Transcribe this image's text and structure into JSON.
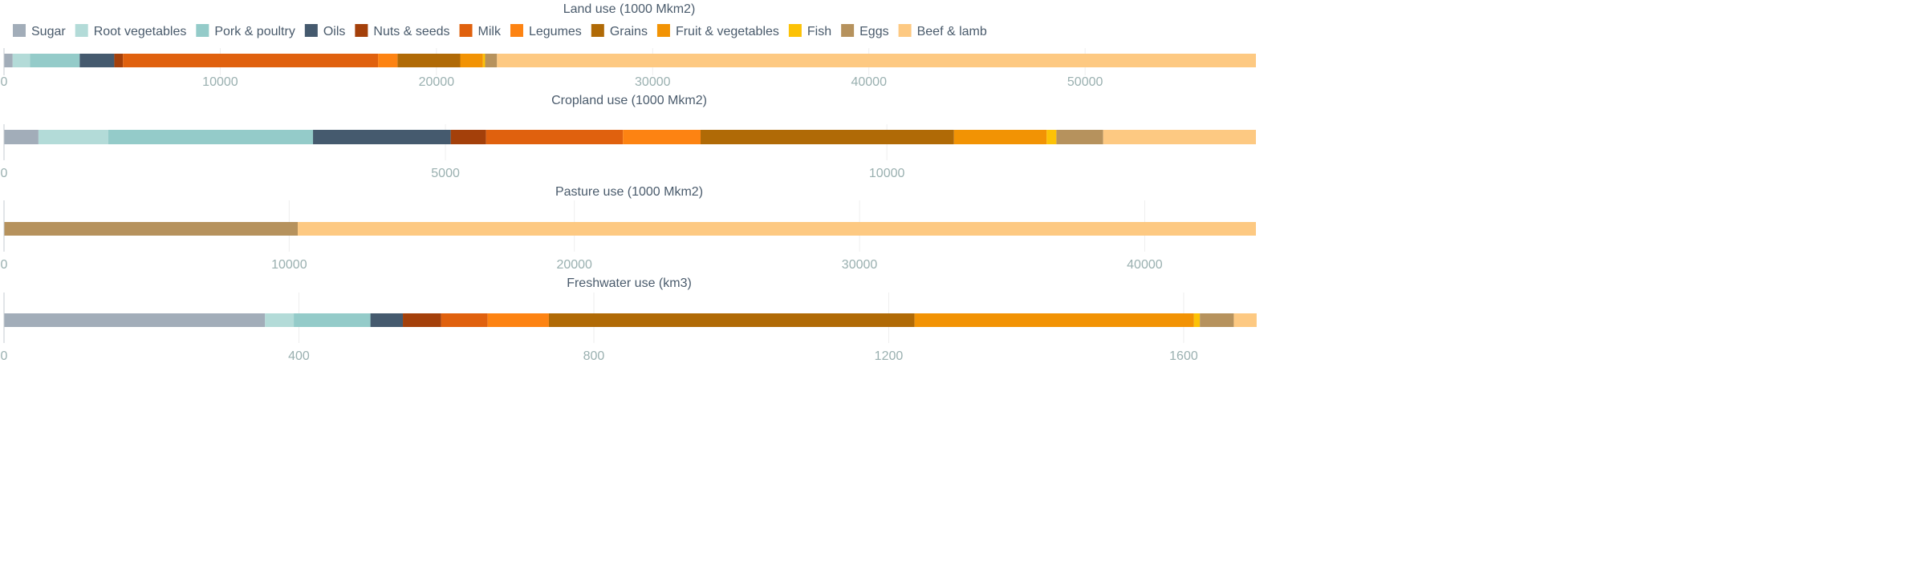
{
  "legend": {
    "items": [
      {
        "label": "Sugar",
        "color": "#a2adb9"
      },
      {
        "label": "Root vegetables",
        "color": "#b3dbd8"
      },
      {
        "label": "Pork & poultry",
        "color": "#94cbc9"
      },
      {
        "label": "Oils",
        "color": "#455a6e"
      },
      {
        "label": "Nuts & seeds",
        "color": "#a4400a"
      },
      {
        "label": "Milk",
        "color": "#e0610e"
      },
      {
        "label": "Legumes",
        "color": "#fd8312"
      },
      {
        "label": "Grains",
        "color": "#b06a06"
      },
      {
        "label": "Fruit & vegetables",
        "color": "#f29304"
      },
      {
        "label": "Fish",
        "color": "#fcc206"
      },
      {
        "label": "Eggs",
        "color": "#b6925d"
      },
      {
        "label": "Beef & lamb",
        "color": "#fdc982"
      }
    ]
  },
  "chart_data": [
    {
      "type": "bar",
      "orientation": "horizontal",
      "stacked": true,
      "title": "Land use (1000 Mkm2)",
      "xlim": [
        0,
        57900
      ],
      "xticks": [
        0,
        10000,
        20000,
        30000,
        40000,
        50000
      ],
      "series": [
        {
          "name": "Sugar",
          "value": 400
        },
        {
          "name": "Root vegetables",
          "value": 800
        },
        {
          "name": "Pork & poultry",
          "value": 2300
        },
        {
          "name": "Oils",
          "value": 1600
        },
        {
          "name": "Nuts & seeds",
          "value": 400
        },
        {
          "name": "Milk",
          "value": 11800
        },
        {
          "name": "Legumes",
          "value": 900
        },
        {
          "name": "Grains",
          "value": 2900
        },
        {
          "name": "Fruit & vegetables",
          "value": 1050
        },
        {
          "name": "Fish",
          "value": 100
        },
        {
          "name": "Eggs",
          "value": 550
        },
        {
          "name": "Beef & lamb",
          "value": 35100
        }
      ]
    },
    {
      "type": "bar",
      "orientation": "horizontal",
      "stacked": true,
      "title": "Cropland use (1000 Mkm2)",
      "xlim": [
        0,
        14180
      ],
      "xticks": [
        0,
        5000,
        10000
      ],
      "series": [
        {
          "name": "Sugar",
          "value": 390
        },
        {
          "name": "Root vegetables",
          "value": 790
        },
        {
          "name": "Pork & poultry",
          "value": 2320
        },
        {
          "name": "Oils",
          "value": 1560
        },
        {
          "name": "Nuts & seeds",
          "value": 400
        },
        {
          "name": "Milk",
          "value": 1550
        },
        {
          "name": "Legumes",
          "value": 880
        },
        {
          "name": "Grains",
          "value": 2870
        },
        {
          "name": "Fruit & vegetables",
          "value": 1050
        },
        {
          "name": "Fish",
          "value": 110
        },
        {
          "name": "Eggs",
          "value": 530
        },
        {
          "name": "Beef & lamb",
          "value": 1730
        }
      ]
    },
    {
      "type": "bar",
      "orientation": "horizontal",
      "stacked": true,
      "title": "Pasture use (1000 Mkm2)",
      "xlim": [
        0,
        43900
      ],
      "xticks": [
        0,
        10000,
        20000,
        30000,
        40000
      ],
      "series": [
        {
          "name": "Eggs",
          "value": 10300
        },
        {
          "name": "Beef & lamb",
          "value": 33600
        }
      ]
    },
    {
      "type": "bar",
      "orientation": "horizontal",
      "stacked": true,
      "title": "Freshwater use (km3)",
      "xlim": [
        0,
        1698
      ],
      "xticks": [
        0,
        400,
        800,
        1200,
        1600
      ],
      "series": [
        {
          "name": "Sugar",
          "value": 354
        },
        {
          "name": "Root vegetables",
          "value": 39
        },
        {
          "name": "Pork & poultry",
          "value": 104
        },
        {
          "name": "Oils",
          "value": 44
        },
        {
          "name": "Nuts & seeds",
          "value": 52
        },
        {
          "name": "Milk",
          "value": 63
        },
        {
          "name": "Legumes",
          "value": 83
        },
        {
          "name": "Grains",
          "value": 496
        },
        {
          "name": "Fruit & vegetables",
          "value": 379
        },
        {
          "name": "Fish",
          "value": 8
        },
        {
          "name": "Eggs",
          "value": 46
        },
        {
          "name": "Beef & lamb",
          "value": 31
        }
      ]
    }
  ]
}
